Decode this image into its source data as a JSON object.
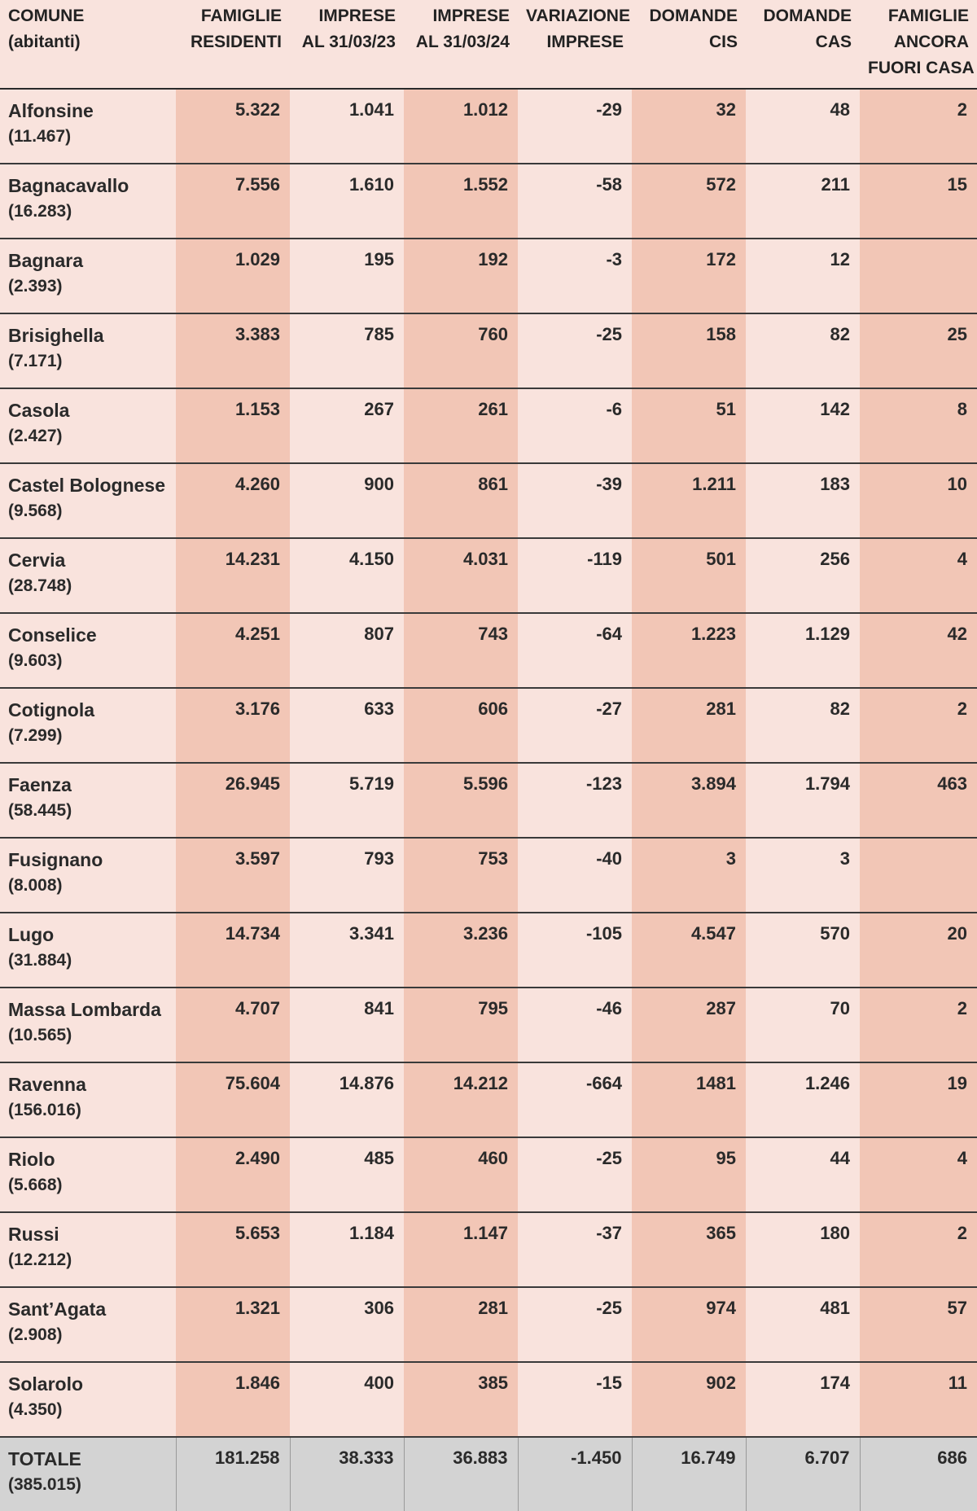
{
  "headers": [
    {
      "line1": "COMUNE",
      "line2": "(abitanti)",
      "line3": ""
    },
    {
      "line1": "FAMIGLIE",
      "line2": "RESIDENTI",
      "line3": ""
    },
    {
      "line1": "IMPRESE",
      "line2": "AL 31/03/23",
      "line3": ""
    },
    {
      "line1": "IMPRESE",
      "line2": "AL 31/03/24",
      "line3": ""
    },
    {
      "line1": "VARIAZIONE",
      "line2": "IMPRESE",
      "line3": ""
    },
    {
      "line1": "DOMANDE",
      "line2": "CIS",
      "line3": ""
    },
    {
      "line1": "DOMANDE",
      "line2": "CAS",
      "line3": ""
    },
    {
      "line1": "FAMIGLIE",
      "line2": "ANCORA",
      "line3": "FUORI CASA"
    }
  ],
  "rows": [
    {
      "comune": "Alfonsine",
      "abitanti": "(11.467)",
      "famiglie": "5.322",
      "imprese23": "1.041",
      "imprese24": "1.012",
      "variazione": "-29",
      "cis": "32",
      "cas": "48",
      "fuori_casa": "2"
    },
    {
      "comune": "Bagnacavallo",
      "abitanti": "(16.283)",
      "famiglie": "7.556",
      "imprese23": "1.610",
      "imprese24": "1.552",
      "variazione": "-58",
      "cis": "572",
      "cas": "211",
      "fuori_casa": "15"
    },
    {
      "comune": "Bagnara",
      "abitanti": "(2.393)",
      "famiglie": "1.029",
      "imprese23": "195",
      "imprese24": "192",
      "variazione": "-3",
      "cis": "172",
      "cas": "12",
      "fuori_casa": ""
    },
    {
      "comune": "Brisighella",
      "abitanti": "(7.171)",
      "famiglie": "3.383",
      "imprese23": "785",
      "imprese24": "760",
      "variazione": "-25",
      "cis": "158",
      "cas": "82",
      "fuori_casa": "25"
    },
    {
      "comune": "Casola",
      "abitanti": "(2.427)",
      "famiglie": "1.153",
      "imprese23": "267",
      "imprese24": "261",
      "variazione": "-6",
      "cis": "51",
      "cas": "142",
      "fuori_casa": "8"
    },
    {
      "comune": "Castel Bolognese",
      "abitanti": "(9.568)",
      "famiglie": "4.260",
      "imprese23": "900",
      "imprese24": "861",
      "variazione": "-39",
      "cis": "1.211",
      "cas": "183",
      "fuori_casa": "10"
    },
    {
      "comune": "Cervia",
      "abitanti": "(28.748)",
      "famiglie": "14.231",
      "imprese23": "4.150",
      "imprese24": "4.031",
      "variazione": "-119",
      "cis": "501",
      "cas": "256",
      "fuori_casa": "4"
    },
    {
      "comune": "Conselice",
      "abitanti": "(9.603)",
      "famiglie": "4.251",
      "imprese23": "807",
      "imprese24": "743",
      "variazione": "-64",
      "cis": "1.223",
      "cas": "1.129",
      "fuori_casa": "42"
    },
    {
      "comune": "Cotignola",
      "abitanti": "(7.299)",
      "famiglie": "3.176",
      "imprese23": "633",
      "imprese24": "606",
      "variazione": "-27",
      "cis": "281",
      "cas": "82",
      "fuori_casa": "2"
    },
    {
      "comune": "Faenza",
      "abitanti": "(58.445)",
      "famiglie": "26.945",
      "imprese23": "5.719",
      "imprese24": "5.596",
      "variazione": "-123",
      "cis": "3.894",
      "cas": "1.794",
      "fuori_casa": "463"
    },
    {
      "comune": "Fusignano",
      "abitanti": "(8.008)",
      "famiglie": "3.597",
      "imprese23": "793",
      "imprese24": "753",
      "variazione": "-40",
      "cis": "3",
      "cas": "3",
      "fuori_casa": ""
    },
    {
      "comune": "Lugo",
      "abitanti": "(31.884)",
      "famiglie": "14.734",
      "imprese23": "3.341",
      "imprese24": "3.236",
      "variazione": "-105",
      "cis": "4.547",
      "cas": "570",
      "fuori_casa": "20"
    },
    {
      "comune": "Massa Lombarda",
      "abitanti": "(10.565)",
      "famiglie": "4.707",
      "imprese23": "841",
      "imprese24": "795",
      "variazione": "-46",
      "cis": "287",
      "cas": "70",
      "fuori_casa": "2"
    },
    {
      "comune": "Ravenna",
      "abitanti": " (156.016)",
      "famiglie": "75.604",
      "imprese23": "14.876",
      "imprese24": "14.212",
      "variazione": "-664",
      "cis": "1481",
      "cas": "1.246",
      "fuori_casa": "19"
    },
    {
      "comune": "Riolo",
      "abitanti": "(5.668)",
      "famiglie": "2.490",
      "imprese23": "485",
      "imprese24": "460",
      "variazione": "-25",
      "cis": "95",
      "cas": "44",
      "fuori_casa": "4"
    },
    {
      "comune": "Russi",
      "abitanti": "(12.212)",
      "famiglie": "5.653",
      "imprese23": "1.184",
      "imprese24": "1.147",
      "variazione": "-37",
      "cis": "365",
      "cas": "180",
      "fuori_casa": "2"
    },
    {
      "comune": "Sant’Agata",
      "abitanti": "(2.908)",
      "famiglie": "1.321",
      "imprese23": "306",
      "imprese24": "281",
      "variazione": "-25",
      "cis": "974",
      "cas": "481",
      "fuori_casa": "57"
    },
    {
      "comune": "Solarolo",
      "abitanti": "(4.350)",
      "famiglie": "1.846",
      "imprese23": "400",
      "imprese24": "385",
      "variazione": "-15",
      "cis": "902",
      "cas": "174",
      "fuori_casa": "11"
    }
  ],
  "total": {
    "comune": "TOTALE",
    "abitanti": "(385.015)",
    "famiglie": "181.258",
    "imprese23": "38.333",
    "imprese24": "36.883",
    "variazione": "-1.450",
    "cis": "16.749",
    "cas": "6.707",
    "fuori_casa": "686"
  },
  "colors": {
    "light_cell": "#f9e3dd",
    "dark_cell": "#f2c6b6",
    "total_row": "#d3d3d3"
  }
}
